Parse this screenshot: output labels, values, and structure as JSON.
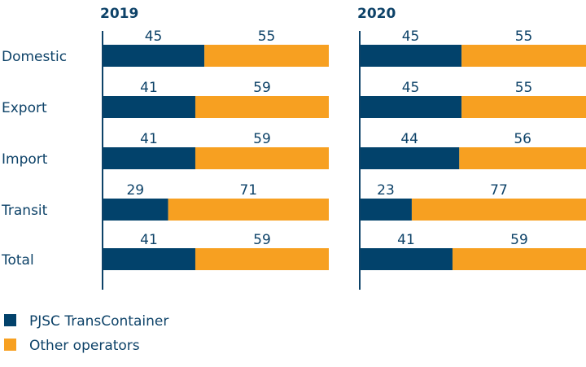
{
  "chart_data": [
    {
      "type": "bar",
      "stacked": true,
      "orientation": "horizontal",
      "title": "2019",
      "categories": [
        "Domestic",
        "Export",
        "Import",
        "Transit",
        "Total"
      ],
      "series": [
        {
          "name": "PJSC TransContainer",
          "values": [
            45,
            41,
            41,
            29,
            41
          ]
        },
        {
          "name": "Other operators",
          "values": [
            55,
            59,
            59,
            71,
            59
          ]
        }
      ],
      "xlim": [
        0,
        100
      ]
    },
    {
      "type": "bar",
      "stacked": true,
      "orientation": "horizontal",
      "title": "2020",
      "categories": [
        "Domestic",
        "Export",
        "Import",
        "Transit",
        "Total"
      ],
      "series": [
        {
          "name": "PJSC TransContainer",
          "values": [
            45,
            45,
            44,
            23,
            41
          ]
        },
        {
          "name": "Other operators",
          "values": [
            55,
            55,
            56,
            77,
            59
          ]
        }
      ],
      "xlim": [
        0,
        100
      ]
    }
  ],
  "legend": {
    "position": "bottom-left",
    "items": [
      "PJSC TransContainer",
      "Other operators"
    ]
  },
  "colors": {
    "PJSC TransContainer": "#02426b",
    "Other operators": "#f7a021",
    "text": "#0d4268"
  }
}
